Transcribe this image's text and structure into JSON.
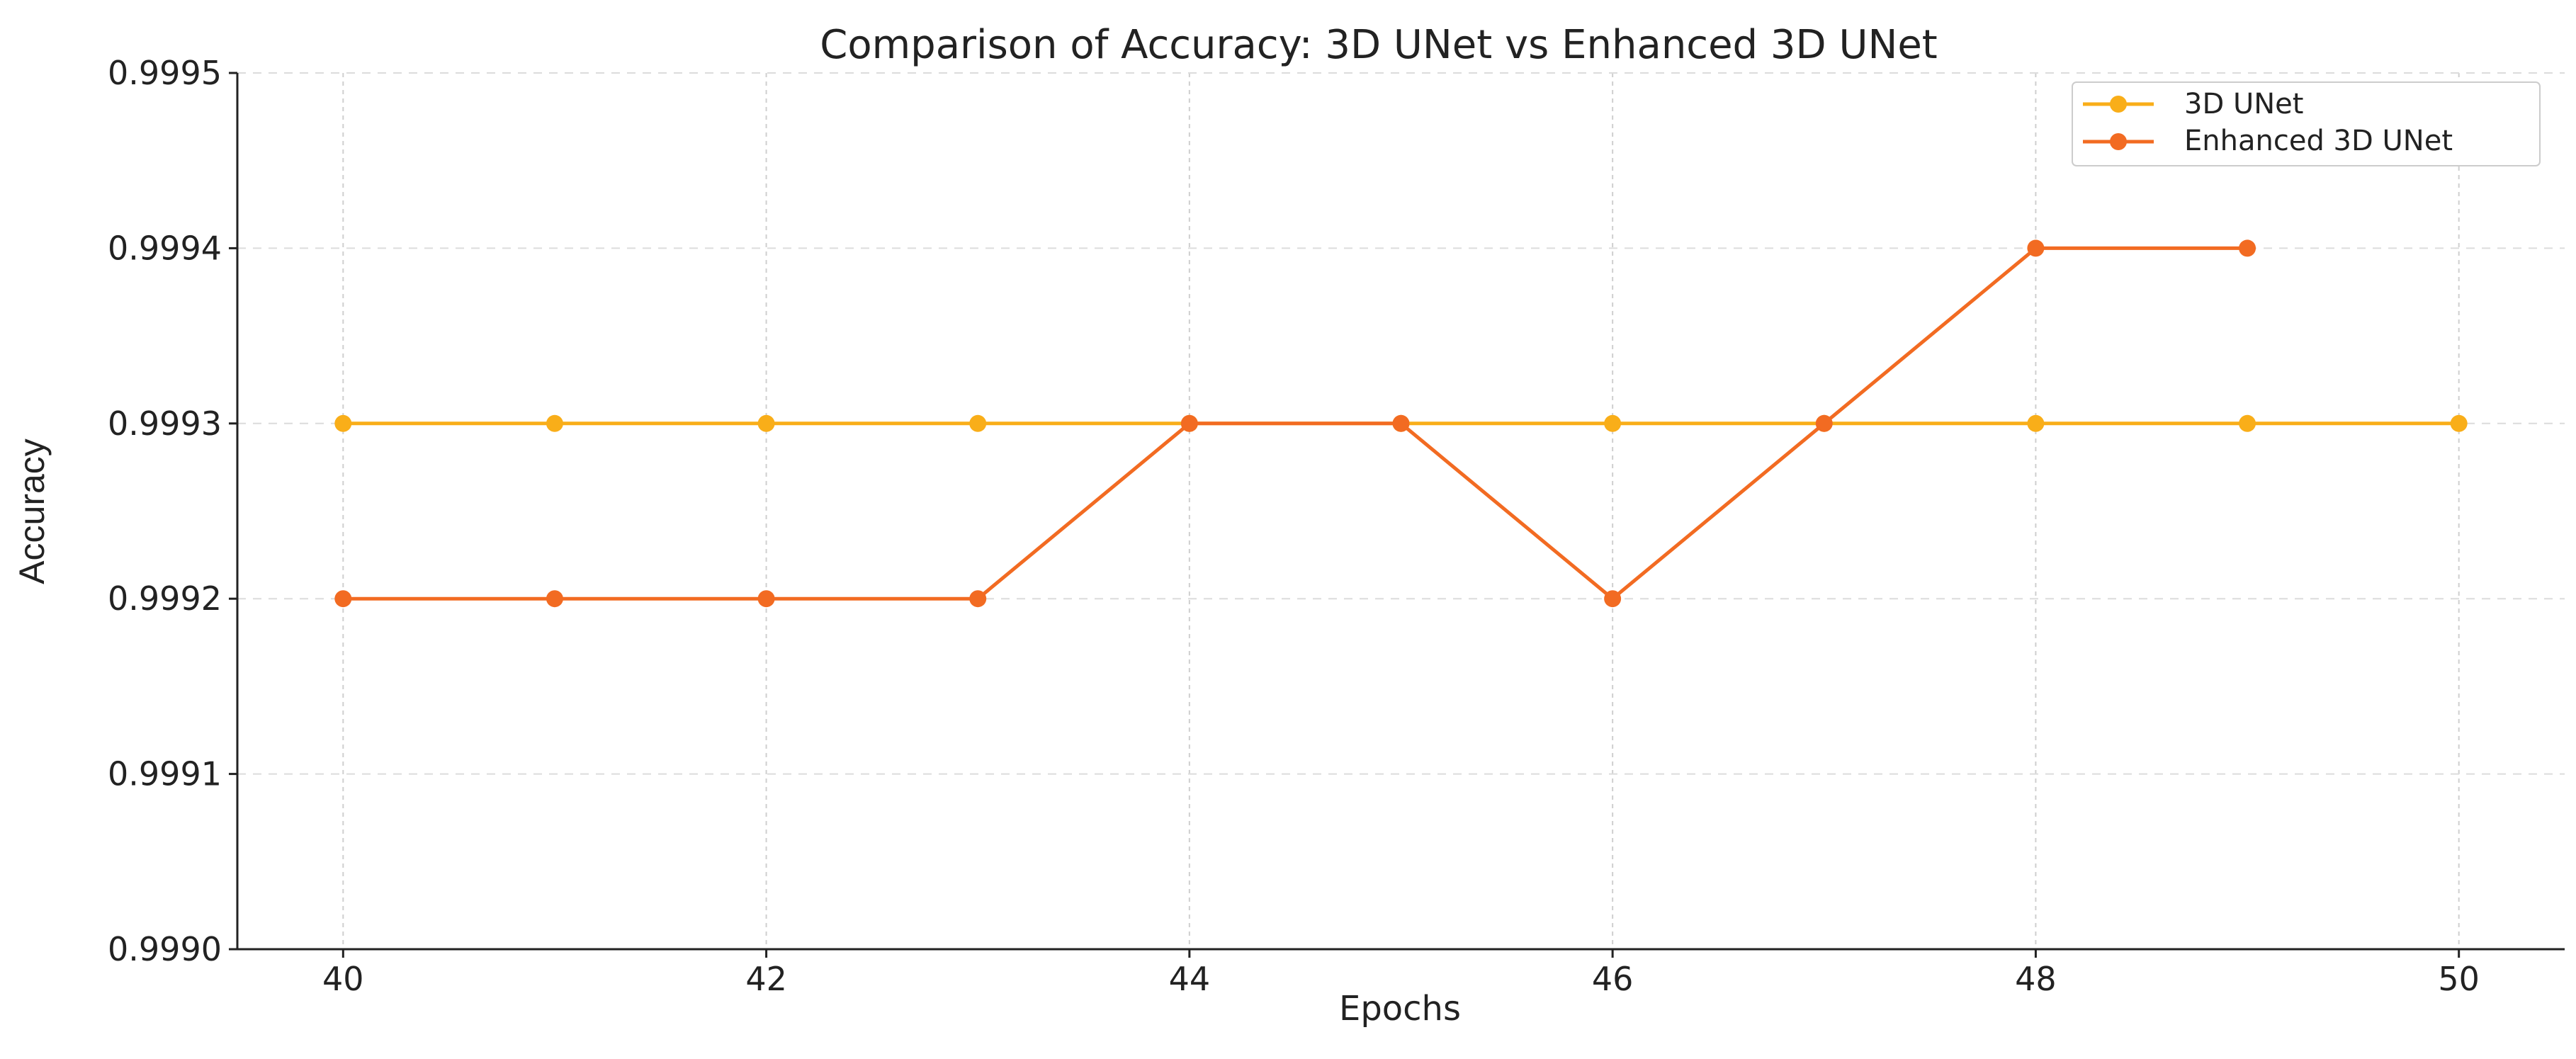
{
  "chart_data": {
    "type": "line",
    "title": "Comparison of Accuracy: 3D UNet vs Enhanced 3D UNet",
    "xlabel": "Epochs",
    "ylabel": "Accuracy",
    "xlim": [
      39.5,
      50.5
    ],
    "ylim": [
      0.999,
      0.9995
    ],
    "xticks": [
      40,
      42,
      44,
      46,
      48,
      50
    ],
    "xtick_labels": [
      "40",
      "42",
      "44",
      "46",
      "48",
      "50"
    ],
    "yticks": [
      0.999,
      0.9991,
      0.9992,
      0.9993,
      0.9994,
      0.9995
    ],
    "ytick_labels": [
      "0.9990",
      "0.9991",
      "0.9992",
      "0.9993",
      "0.9994",
      "0.9995"
    ],
    "x_grid_values": [
      40,
      42,
      44,
      46,
      48,
      50
    ],
    "y_grid_values": [
      0.9991,
      0.9992,
      0.9993,
      0.9994,
      0.9995
    ],
    "grid": true,
    "legend_position": "top-right",
    "series": [
      {
        "name": "3D UNet",
        "color": "#f9ae19",
        "x": [
          40,
          41,
          42,
          43,
          44,
          45,
          46,
          47,
          48,
          49,
          50
        ],
        "y": [
          0.9993,
          0.9993,
          0.9993,
          0.9993,
          0.9993,
          0.9993,
          0.9993,
          0.9993,
          0.9993,
          0.9993,
          0.9993
        ]
      },
      {
        "name": "Enhanced 3D UNet",
        "color": "#f26b22",
        "x": [
          40,
          41,
          42,
          43,
          44,
          45,
          46,
          47,
          48,
          49
        ],
        "y": [
          0.9992,
          0.9992,
          0.9992,
          0.9992,
          0.9993,
          0.9993,
          0.9992,
          0.9993,
          0.9994,
          0.9994
        ]
      }
    ]
  }
}
